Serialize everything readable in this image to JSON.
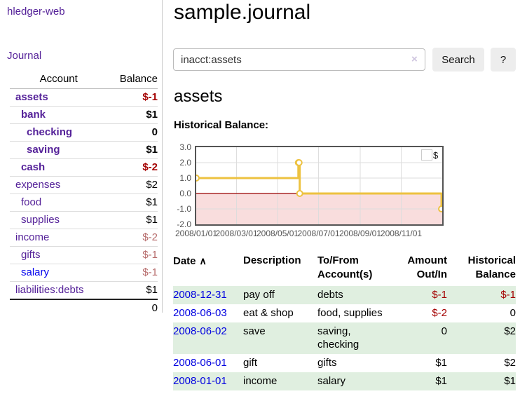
{
  "app": {
    "brand": "hledger-web",
    "nav_journal": "Journal"
  },
  "sidebar": {
    "table": {
      "headers": {
        "account": "Account",
        "balance": "Balance"
      },
      "rows": [
        {
          "name": "assets",
          "balance": "$-1"
        },
        {
          "name": "bank",
          "balance": "$1"
        },
        {
          "name": "checking",
          "balance": "0"
        },
        {
          "name": "saving",
          "balance": "$1"
        },
        {
          "name": "cash",
          "balance": "$-2"
        },
        {
          "name": "expenses",
          "balance": "$2"
        },
        {
          "name": "food",
          "balance": "$1"
        },
        {
          "name": "supplies",
          "balance": "$1"
        },
        {
          "name": "income",
          "balance": "$-2"
        },
        {
          "name": "gifts",
          "balance": "$-1"
        },
        {
          "name": "salary",
          "balance": "$-1"
        },
        {
          "name": "liabilities:debts",
          "balance": "$1"
        }
      ],
      "total": "0"
    }
  },
  "header": {
    "title": "sample.journal"
  },
  "search": {
    "value": "inacct:assets",
    "placeholder": "",
    "clear_icon": "×",
    "button_label": "Search",
    "help_label": "?"
  },
  "account_page": {
    "heading": "assets",
    "chart_label": "Historical Balance:"
  },
  "chart_data": {
    "type": "line",
    "title": "Historical Balance",
    "style": "step",
    "x_range": [
      "2008-01-01",
      "2009-01-01"
    ],
    "ylim": [
      -2,
      3
    ],
    "yticks": [
      3,
      2,
      1,
      0,
      -1,
      -2
    ],
    "xticks": [
      "2008/01/01",
      "2008/03/01",
      "2008/05/01",
      "2008/07/01",
      "2008/09/01",
      "2008/11/01"
    ],
    "series": [
      {
        "name": "$",
        "points": [
          {
            "x": "2008-01-01",
            "y": 1
          },
          {
            "x": "2008-06-01",
            "y": 2
          },
          {
            "x": "2008-06-02",
            "y": 2
          },
          {
            "x": "2008-06-03",
            "y": 0
          },
          {
            "x": "2008-12-31",
            "y": -1
          }
        ]
      }
    ],
    "legend_position": "top-right",
    "grid": true,
    "colors": {
      "line": "#edc240",
      "marker_fill": "#ffffff",
      "grid": "#dddddd",
      "border": "#545454",
      "zero_line": "#990000",
      "negative_region": "#f9dddd",
      "tick_text": "#545454"
    }
  },
  "register": {
    "headers": {
      "date": "Date",
      "sort_icon": "∧",
      "description": "Description",
      "accounts": "To/From Account(s)",
      "amount": "Amount Out/In",
      "balance": "Historical Balance"
    },
    "rows": [
      {
        "date": "2008-12-31",
        "description": "pay off",
        "accounts": "debts",
        "amount": "$-1",
        "balance": "$-1"
      },
      {
        "date": "2008-06-03",
        "description": "eat & shop",
        "accounts": "food, supplies",
        "amount": "$-2",
        "balance": "0"
      },
      {
        "date": "2008-06-02",
        "description": "save",
        "accounts": "saving,\nchecking",
        "amount": "0",
        "balance": "$2"
      },
      {
        "date": "2008-06-01",
        "description": "gift",
        "accounts": "gifts",
        "amount": "$1",
        "balance": "$2"
      },
      {
        "date": "2008-01-01",
        "description": "income",
        "accounts": "salary",
        "amount": "$1",
        "balance": "$1"
      }
    ]
  },
  "colors": {
    "link_purple": "#552299",
    "link_blue": "#0000ee",
    "negative": "#a40000",
    "negative_dim": "#b66b6b",
    "row_green": "#e0efe0",
    "date_link": "#0000e0"
  }
}
